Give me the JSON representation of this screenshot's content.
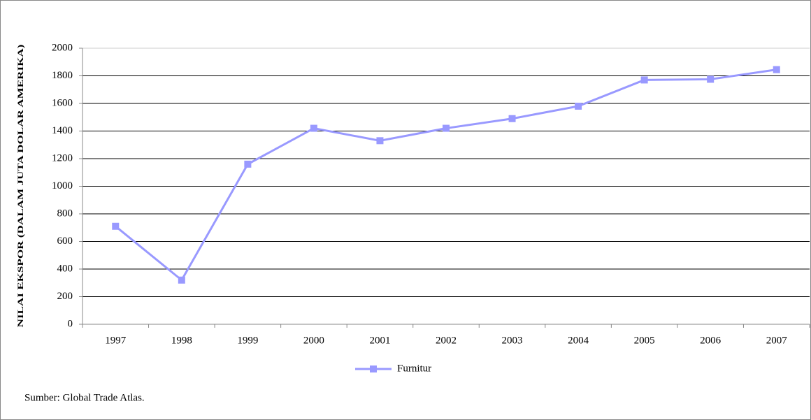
{
  "chart_data": {
    "type": "line",
    "y_label": "NILAI EKSPOR (DALAM JUTA DOLAR AMERIKA)",
    "categories": [
      "1997",
      "1998",
      "1999",
      "2000",
      "2001",
      "2002",
      "2003",
      "2004",
      "2005",
      "2006",
      "2007"
    ],
    "series": [
      {
        "name": "Furnitur",
        "color": "#9999ff",
        "values": [
          710,
          320,
          1160,
          1420,
          1330,
          1420,
          1490,
          1580,
          1770,
          1775,
          1845
        ]
      }
    ],
    "ylim": [
      0,
      2000
    ],
    "yticks": [
      0,
      200,
      400,
      600,
      800,
      1000,
      1200,
      1400,
      1600,
      1800,
      2000
    ],
    "grid": true,
    "legend": "bottom",
    "source": "Sumber: Global Trade Atlas."
  }
}
